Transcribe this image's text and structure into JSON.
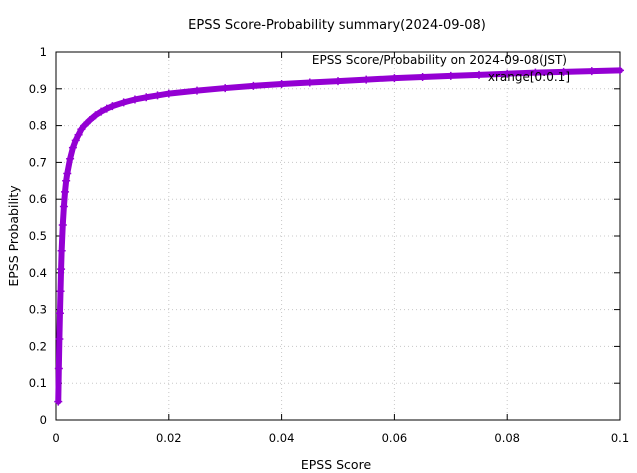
{
  "chart_data": {
    "type": "scatter",
    "title": "EPSS Score-Probability summary(2024-09-08)",
    "xlabel": "EPSS Score",
    "ylabel": "EPSS Probability",
    "xlim": [
      0,
      0.1
    ],
    "ylim": [
      0,
      1
    ],
    "xticks": [
      "0",
      "0.02",
      "0.04",
      "0.06",
      "0.08",
      "0.1"
    ],
    "yticks": [
      "0",
      "0.1",
      "0.2",
      "0.3",
      "0.4",
      "0.5",
      "0.6",
      "0.7",
      "0.8",
      "0.9",
      "1"
    ],
    "grid": true,
    "legend_position": "top-right",
    "annotation": "xrange[0:0.1]",
    "series": [
      {
        "name": "EPSS Score/Probability on 2024-09-08(JST)",
        "color": "#9400d3",
        "marker": "plus",
        "x": [
          0.0004,
          0.0005,
          0.0006,
          0.0007,
          0.0008,
          0.0009,
          0.001,
          0.0012,
          0.0014,
          0.0016,
          0.0018,
          0.002,
          0.0025,
          0.003,
          0.0035,
          0.004,
          0.0045,
          0.005,
          0.006,
          0.007,
          0.008,
          0.009,
          0.01,
          0.012,
          0.014,
          0.016,
          0.018,
          0.02,
          0.025,
          0.03,
          0.035,
          0.04,
          0.045,
          0.05,
          0.055,
          0.06,
          0.065,
          0.07,
          0.075,
          0.08,
          0.085,
          0.09,
          0.095,
          0.1
        ],
        "y": [
          0.05,
          0.14,
          0.22,
          0.29,
          0.35,
          0.41,
          0.46,
          0.53,
          0.58,
          0.62,
          0.65,
          0.67,
          0.71,
          0.74,
          0.76,
          0.775,
          0.79,
          0.8,
          0.815,
          0.828,
          0.838,
          0.846,
          0.853,
          0.863,
          0.871,
          0.877,
          0.882,
          0.887,
          0.895,
          0.902,
          0.908,
          0.913,
          0.917,
          0.921,
          0.925,
          0.929,
          0.932,
          0.935,
          0.938,
          0.941,
          0.944,
          0.946,
          0.948,
          0.95
        ]
      }
    ]
  }
}
